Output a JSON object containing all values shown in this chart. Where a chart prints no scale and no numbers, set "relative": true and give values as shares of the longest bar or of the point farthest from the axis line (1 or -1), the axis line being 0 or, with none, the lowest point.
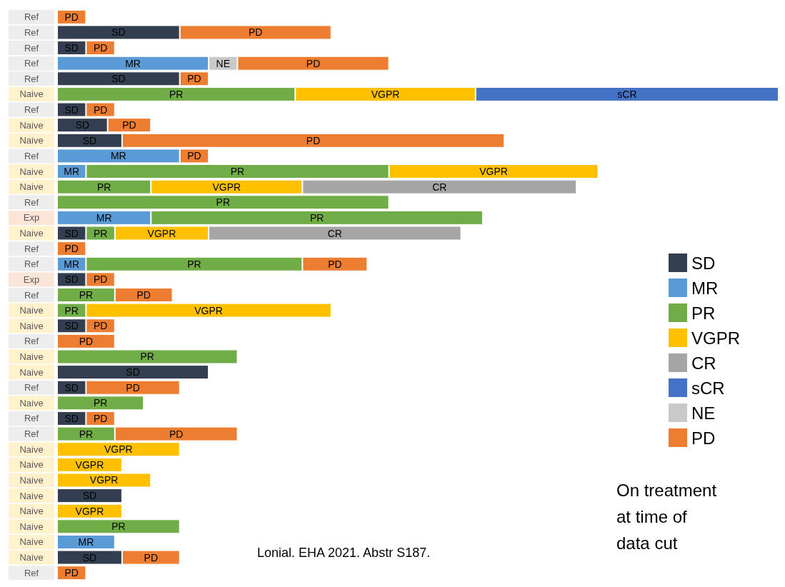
{
  "chart_data": {
    "type": "bar",
    "orientation": "horizontal",
    "stacked": true,
    "relative": true,
    "legend": "right",
    "tick_labels": "y",
    "categories": [
      "Ref",
      "Ref",
      "Ref",
      "Ref",
      "Ref",
      "Naive",
      "Ref",
      "Naive",
      "Naive",
      "Ref",
      "Naive",
      "Naive",
      "Ref",
      "Exp",
      "Naive",
      "Ref",
      "Ref",
      "Exp",
      "Ref",
      "Naive",
      "Naive",
      "Ref",
      "Naive",
      "Naive",
      "Ref",
      "Naive",
      "Ref",
      "Ref",
      "Naive",
      "Naive",
      "Naive",
      "Naive",
      "Naive",
      "Naive",
      "Naive",
      "Naive",
      "Ref"
    ],
    "series": [
      {
        "name": "SD",
        "color": "#333f50",
        "values": [
          null,
          0.17,
          0.04,
          null,
          0.17,
          null,
          0.04,
          0.07,
          0.09,
          null,
          null,
          null,
          null,
          null,
          0.04,
          null,
          null,
          0.04,
          null,
          null,
          0.04,
          null,
          null,
          0.21,
          0.04,
          null,
          0.04,
          null,
          null,
          null,
          null,
          0.09,
          null,
          null,
          null,
          0.09,
          null
        ]
      },
      {
        "name": "MR",
        "color": "#5b9bd5",
        "values": [
          null,
          null,
          null,
          0.21,
          null,
          null,
          null,
          null,
          null,
          0.17,
          0.04,
          null,
          null,
          0.13,
          null,
          null,
          0.04,
          null,
          null,
          null,
          null,
          null,
          null,
          null,
          null,
          null,
          null,
          null,
          null,
          null,
          null,
          null,
          null,
          null,
          0.08,
          null,
          null
        ]
      },
      {
        "name": "PR",
        "color": "#70ad47",
        "values": [
          null,
          null,
          null,
          null,
          null,
          0.33,
          null,
          null,
          null,
          null,
          0.42,
          0.13,
          0.46,
          0.46,
          0.04,
          null,
          0.3,
          null,
          0.08,
          0.04,
          null,
          null,
          0.25,
          null,
          null,
          0.12,
          null,
          0.08,
          null,
          null,
          null,
          null,
          null,
          0.17,
          null,
          null,
          null
        ]
      },
      {
        "name": "VGPR",
        "color": "#ffc000",
        "values": [
          null,
          null,
          null,
          null,
          null,
          0.25,
          null,
          null,
          null,
          null,
          0.29,
          0.21,
          null,
          null,
          0.13,
          null,
          null,
          null,
          null,
          0.34,
          null,
          null,
          null,
          null,
          null,
          null,
          null,
          null,
          0.17,
          0.09,
          0.13,
          null,
          0.09,
          null,
          null,
          null,
          null
        ]
      },
      {
        "name": "CR",
        "color": "#a5a5a5",
        "values": [
          null,
          null,
          null,
          null,
          null,
          null,
          null,
          null,
          null,
          null,
          null,
          0.38,
          null,
          null,
          0.35,
          null,
          null,
          null,
          null,
          null,
          null,
          null,
          null,
          null,
          null,
          null,
          null,
          null,
          null,
          null,
          null,
          null,
          null,
          null,
          null,
          null,
          null
        ]
      },
      {
        "name": "sCR",
        "color": "#4472c4",
        "values": [
          null,
          null,
          null,
          null,
          null,
          0.42,
          null,
          null,
          null,
          null,
          null,
          null,
          null,
          null,
          null,
          null,
          null,
          null,
          null,
          null,
          null,
          null,
          null,
          null,
          null,
          null,
          null,
          null,
          null,
          null,
          null,
          null,
          null,
          null,
          null,
          null,
          null
        ]
      },
      {
        "name": "NE",
        "color": "#c9c9c9",
        "values": [
          null,
          null,
          null,
          0.04,
          null,
          null,
          null,
          null,
          null,
          null,
          null,
          null,
          null,
          null,
          null,
          null,
          null,
          null,
          null,
          null,
          null,
          null,
          null,
          null,
          null,
          null,
          null,
          null,
          null,
          null,
          null,
          null,
          null,
          null,
          null,
          null,
          null
        ]
      },
      {
        "name": "PD",
        "color": "#ed7d31",
        "values": [
          0.04,
          0.21,
          0.04,
          0.21,
          0.04,
          null,
          0.04,
          0.06,
          0.53,
          0.04,
          null,
          null,
          null,
          null,
          null,
          0.04,
          0.09,
          0.04,
          0.08,
          null,
          0.04,
          0.08,
          null,
          null,
          0.13,
          null,
          0.04,
          0.17,
          null,
          null,
          null,
          null,
          null,
          null,
          null,
          0.08,
          0.04
        ]
      }
    ],
    "annotations": [
      "Lonial. EHA 2021. Abstr S187.",
      "On treatment\nat time of\ndata cut"
    ]
  }
}
